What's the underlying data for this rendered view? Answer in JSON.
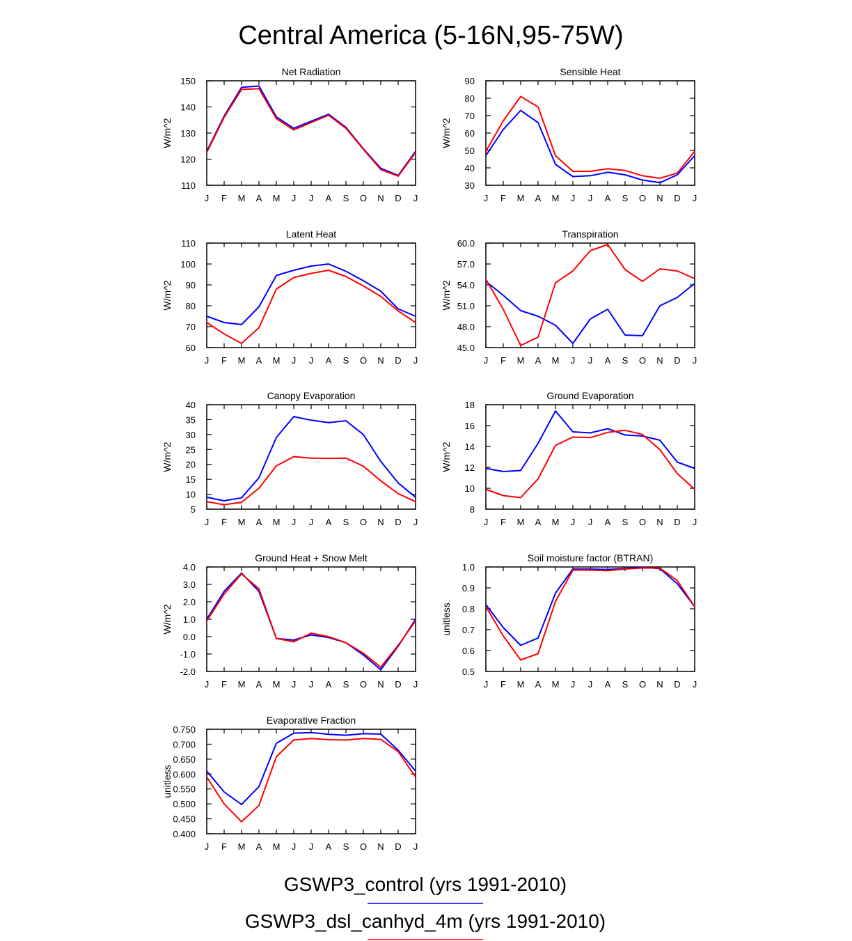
{
  "title": "Central America (5-16N,95-75W)",
  "legend": [
    {
      "label": "GSWP3_control (yrs 1991-2010)",
      "color": "#0000ff"
    },
    {
      "label": "GSWP3_dsl_canhyd_4m (yrs 1991-2010)",
      "color": "#ff0000"
    }
  ],
  "months": [
    "J",
    "F",
    "M",
    "A",
    "M",
    "J",
    "J",
    "A",
    "S",
    "O",
    "N",
    "D",
    "J"
  ],
  "chart_data": [
    {
      "type": "line",
      "title": "Net Radiation",
      "ylabel": "W/m^2",
      "ylim": [
        110,
        150
      ],
      "yticks": [
        "110",
        "120",
        "130",
        "140",
        "150"
      ],
      "series": [
        {
          "name": "GSWP3_control (yrs 1991-2010)",
          "color": "#0000ff",
          "values": [
            123.0,
            136.5,
            147.5,
            148.0,
            136.2,
            131.8,
            134.5,
            137.2,
            132.2,
            124.0,
            116.5,
            113.8,
            123.0
          ]
        },
        {
          "name": "GSWP3_dsl_canhyd_4m (yrs 1991-2010)",
          "color": "#ff0000",
          "values": [
            122.5,
            136.0,
            146.7,
            147.0,
            135.5,
            131.2,
            134.0,
            136.8,
            131.8,
            123.8,
            116.0,
            113.5,
            122.5
          ]
        }
      ]
    },
    {
      "type": "line",
      "title": "Sensible Heat",
      "ylabel": "W/m^2",
      "ylim": [
        30,
        90
      ],
      "yticks": [
        "30",
        "40",
        "50",
        "60",
        "70",
        "80",
        "90"
      ],
      "series": [
        {
          "name": "GSWP3_control (yrs 1991-2010)",
          "color": "#0000ff",
          "values": [
            47.0,
            62.0,
            73.0,
            66.0,
            42.0,
            35.0,
            35.5,
            37.5,
            36.0,
            33.0,
            31.5,
            36.0,
            47.0
          ]
        },
        {
          "name": "GSWP3_dsl_canhyd_4m (yrs 1991-2010)",
          "color": "#ff0000",
          "values": [
            49.5,
            67.0,
            81.0,
            75.0,
            47.0,
            38.0,
            38.0,
            39.5,
            38.5,
            35.5,
            34.0,
            37.0,
            49.5
          ]
        }
      ]
    },
    {
      "type": "line",
      "title": "Latent Heat",
      "ylabel": "W/m^2",
      "ylim": [
        60,
        110
      ],
      "yticks": [
        "60",
        "70",
        "80",
        "90",
        "100",
        "110"
      ],
      "series": [
        {
          "name": "GSWP3_control (yrs 1991-2010)",
          "color": "#0000ff",
          "values": [
            75.0,
            72.0,
            71.0,
            79.5,
            94.5,
            97.0,
            99.0,
            100.0,
            96.5,
            92.0,
            87.0,
            78.5,
            75.0
          ]
        },
        {
          "name": "GSWP3_dsl_canhyd_4m (yrs 1991-2010)",
          "color": "#ff0000",
          "values": [
            72.0,
            66.5,
            62.0,
            69.5,
            88.0,
            93.5,
            95.5,
            97.0,
            94.0,
            89.5,
            84.5,
            77.5,
            72.0
          ]
        }
      ]
    },
    {
      "type": "line",
      "title": "Transpiration",
      "ylabel": "W/m^2",
      "ylim": [
        45,
        60
      ],
      "yticks": [
        "45.0",
        "48.0",
        "51.0",
        "54.0",
        "57.0",
        "60.0"
      ],
      "series": [
        {
          "name": "GSWP3_control (yrs 1991-2010)",
          "color": "#0000ff",
          "values": [
            54.5,
            52.5,
            50.3,
            49.5,
            48.2,
            45.6,
            49.1,
            50.5,
            46.8,
            46.7,
            51.0,
            52.2,
            54.2
          ]
        },
        {
          "name": "GSWP3_dsl_canhyd_4m (yrs 1991-2010)",
          "color": "#ff0000",
          "values": [
            54.8,
            50.5,
            45.3,
            46.5,
            54.3,
            56.0,
            58.9,
            59.8,
            56.2,
            54.5,
            56.3,
            56.0,
            54.9
          ]
        }
      ]
    },
    {
      "type": "line",
      "title": "Canopy Evaporation",
      "ylabel": "W/m^2",
      "ylim": [
        5,
        40
      ],
      "yticks": [
        "5",
        "10",
        "15",
        "20",
        "25",
        "30",
        "35",
        "40"
      ],
      "series": [
        {
          "name": "GSWP3_control (yrs 1991-2010)",
          "color": "#0000ff",
          "values": [
            9.0,
            7.8,
            8.8,
            15.5,
            29.0,
            36.0,
            34.8,
            34.0,
            34.6,
            30.0,
            21.0,
            13.8,
            9.0
          ]
        },
        {
          "name": "GSWP3_dsl_canhyd_4m (yrs 1991-2010)",
          "color": "#ff0000",
          "values": [
            7.5,
            6.5,
            7.3,
            12.0,
            19.5,
            22.6,
            22.1,
            22.0,
            22.1,
            19.4,
            14.5,
            10.2,
            7.5
          ]
        }
      ]
    },
    {
      "type": "line",
      "title": "Ground Evaporation",
      "ylabel": "W/m^2",
      "ylim": [
        8,
        18
      ],
      "yticks": [
        "8",
        "10",
        "12",
        "14",
        "16",
        "18"
      ],
      "series": [
        {
          "name": "GSWP3_control (yrs 1991-2010)",
          "color": "#0000ff",
          "values": [
            11.9,
            11.6,
            11.7,
            14.3,
            17.4,
            15.4,
            15.3,
            15.7,
            15.1,
            15.0,
            14.6,
            12.5,
            11.9
          ]
        },
        {
          "name": "GSWP3_dsl_canhyd_4m (yrs 1991-2010)",
          "color": "#ff0000",
          "values": [
            9.9,
            9.3,
            9.1,
            10.9,
            14.1,
            14.9,
            14.85,
            15.35,
            15.55,
            15.15,
            13.7,
            11.4,
            9.9
          ]
        }
      ]
    },
    {
      "type": "line",
      "title": "Ground Heat + Snow Melt",
      "ylabel": "W/m^2",
      "ylim": [
        -2,
        4
      ],
      "yticks": [
        "-2.0",
        "-1.0",
        "0.0",
        "1.0",
        "2.0",
        "3.0",
        "4.0"
      ],
      "series": [
        {
          "name": "GSWP3_control (yrs 1991-2010)",
          "color": "#0000ff",
          "values": [
            1.0,
            2.6,
            3.65,
            2.6,
            -0.1,
            -0.2,
            0.1,
            -0.05,
            -0.35,
            -1.05,
            -1.9,
            -0.55,
            1.0
          ]
        },
        {
          "name": "GSWP3_dsl_canhyd_4m (yrs 1991-2010)",
          "color": "#ff0000",
          "values": [
            0.9,
            2.45,
            3.6,
            2.75,
            -0.1,
            -0.3,
            0.2,
            0.0,
            -0.35,
            -0.95,
            -1.75,
            -0.5,
            0.9
          ]
        }
      ]
    },
    {
      "type": "line",
      "title": "Soil moisture factor (BTRAN)",
      "ylabel": "unitless",
      "ylim": [
        0.5,
        1.0
      ],
      "yticks": [
        "0.5",
        "0.6",
        "0.7",
        "0.8",
        "0.9",
        "1.0"
      ],
      "series": [
        {
          "name": "GSWP3_control (yrs 1991-2010)",
          "color": "#0000ff",
          "values": [
            0.82,
            0.71,
            0.625,
            0.66,
            0.875,
            0.99,
            0.99,
            0.988,
            0.993,
            0.998,
            0.992,
            0.92,
            0.81
          ]
        },
        {
          "name": "GSWP3_dsl_canhyd_4m (yrs 1991-2010)",
          "color": "#ff0000",
          "values": [
            0.81,
            0.67,
            0.555,
            0.585,
            0.835,
            0.985,
            0.985,
            0.982,
            0.99,
            0.995,
            0.995,
            0.935,
            0.81
          ]
        }
      ]
    },
    {
      "type": "line",
      "title": "Evaporative Fraction",
      "ylabel": "unitless",
      "ylim": [
        0.4,
        0.75
      ],
      "yticks": [
        "0.400",
        "0.450",
        "0.500",
        "0.550",
        "0.600",
        "0.650",
        "0.700",
        "0.750"
      ],
      "series": [
        {
          "name": "GSWP3_control (yrs 1991-2010)",
          "color": "#0000ff",
          "values": [
            0.61,
            0.54,
            0.498,
            0.558,
            0.703,
            0.737,
            0.739,
            0.733,
            0.73,
            0.735,
            0.734,
            0.68,
            0.61
          ]
        },
        {
          "name": "GSWP3_dsl_canhyd_4m (yrs 1991-2010)",
          "color": "#ff0000",
          "values": [
            0.59,
            0.5,
            0.44,
            0.495,
            0.658,
            0.714,
            0.719,
            0.715,
            0.714,
            0.719,
            0.716,
            0.675,
            0.59
          ]
        }
      ]
    }
  ]
}
